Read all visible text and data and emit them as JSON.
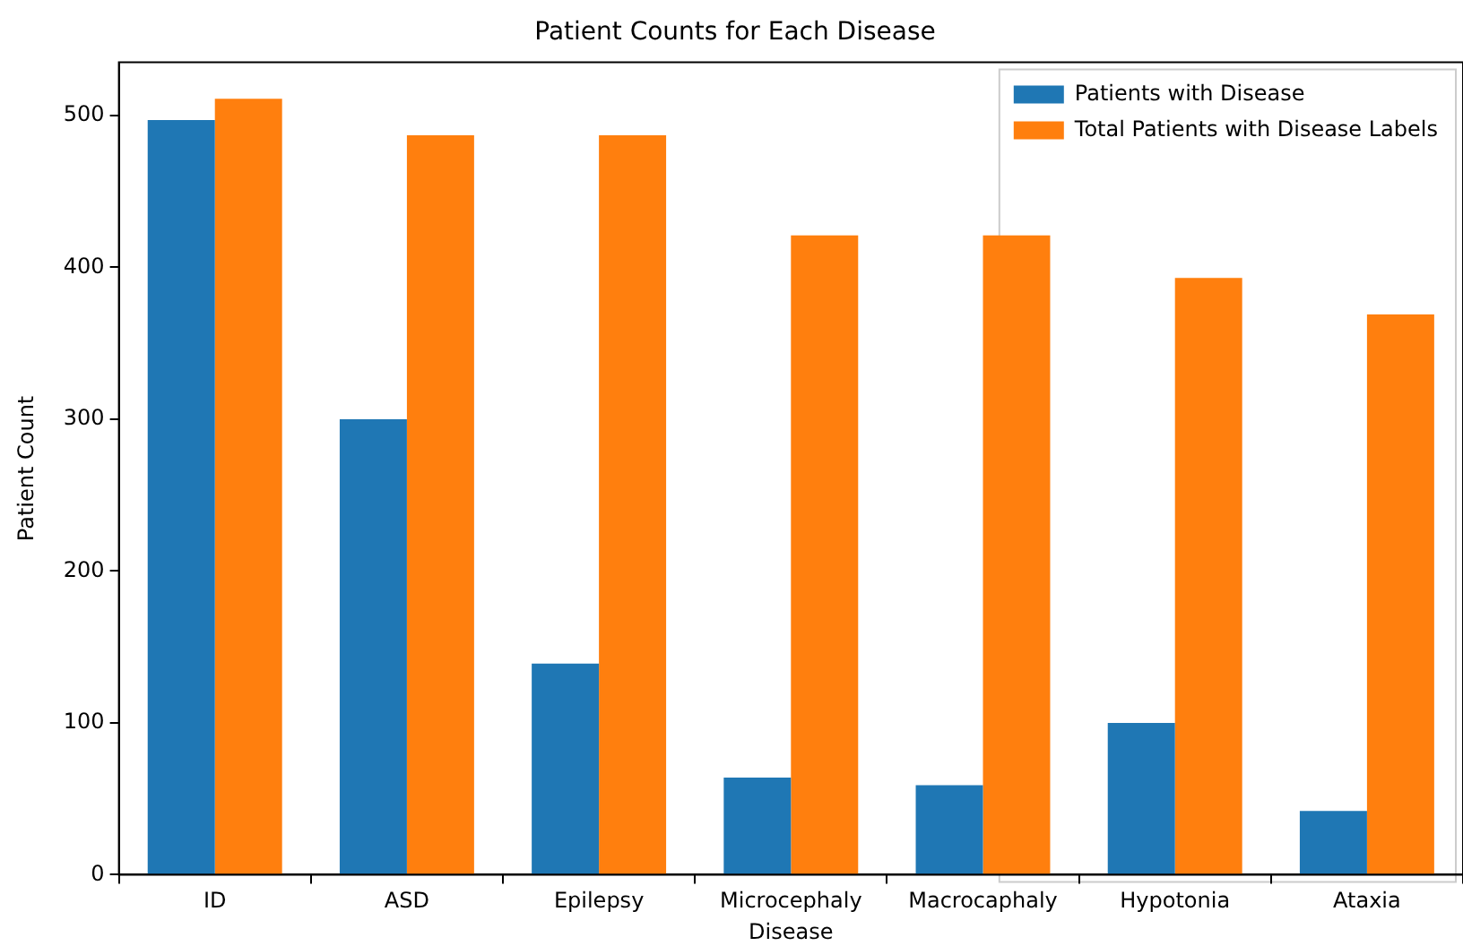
{
  "chart_data": {
    "type": "bar",
    "title": "Patient Counts for Each Disease",
    "xlabel": "Disease",
    "ylabel": "Patient Count",
    "categories": [
      "ID",
      "ASD",
      "Epilepsy",
      "Microcephaly",
      "Macrocaphaly",
      "Hypotonia",
      "Ataxia"
    ],
    "series": [
      {
        "name": "Patients with Disease",
        "color": "#1f77b4",
        "values": [
          497,
          300,
          139,
          64,
          59,
          100,
          42
        ]
      },
      {
        "name": "Total Patients with Disease Labels",
        "color": "#ff7f0e",
        "values": [
          511,
          487,
          487,
          421,
          421,
          393,
          369
        ]
      }
    ],
    "ylim": [
      0,
      535
    ],
    "yticks": [
      0,
      100,
      200,
      300,
      400,
      500
    ],
    "grid": false,
    "legend": "top right"
  }
}
